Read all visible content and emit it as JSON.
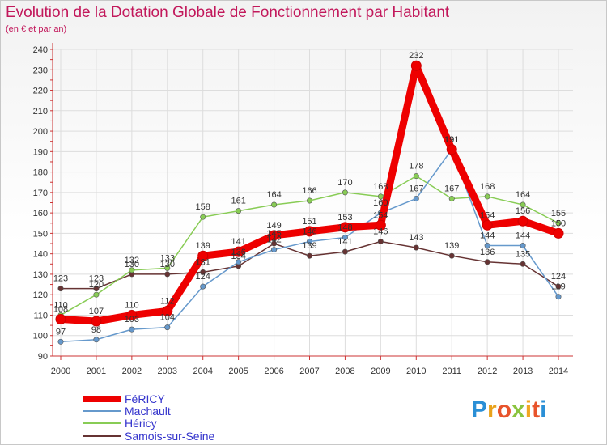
{
  "chart_data": {
    "type": "line",
    "title": "Evolution de la Dotation Globale de Fonctionnement par Habitant",
    "subtitle": "(en € et par an)",
    "categories": [
      "2000",
      "2001",
      "2002",
      "2003",
      "2004",
      "2005",
      "2006",
      "2007",
      "2008",
      "2009",
      "2010",
      "2011",
      "2012",
      "2013",
      "2014"
    ],
    "ylim": [
      90,
      240
    ],
    "yticks": [
      90,
      100,
      110,
      120,
      130,
      140,
      150,
      160,
      170,
      180,
      190,
      200,
      210,
      220,
      230,
      240
    ],
    "legend_position": "bottom-left",
    "series": [
      {
        "name": "FéRICY",
        "color": "#ee0000",
        "values": [
          108,
          107,
          110,
          112,
          139,
          141,
          149,
          151,
          153,
          154,
          232,
          191,
          154,
          156,
          150
        ],
        "labels": [
          "108",
          "107",
          "110",
          "112",
          "139",
          "141",
          "149",
          "151",
          "153",
          "154",
          "232",
          "191",
          "154",
          "156",
          "150"
        ]
      },
      {
        "name": "Machault",
        "color": "#6699cc",
        "values": [
          97,
          98,
          103,
          104,
          124,
          136,
          142,
          146,
          148,
          160,
          167,
          191,
          144,
          144,
          119
        ],
        "labels": [
          "97",
          "98",
          "103",
          "104",
          "124",
          "136",
          "142",
          "146",
          "148",
          "160",
          "167",
          "191",
          "144",
          "144",
          "119"
        ]
      },
      {
        "name": "Héricy",
        "color": "#88cc55",
        "values": [
          110,
          120,
          132,
          133,
          158,
          161,
          164,
          166,
          170,
          168,
          178,
          167,
          168,
          164,
          155
        ],
        "labels": [
          "110",
          "120",
          "132",
          "133",
          "158",
          "161",
          "164",
          "166",
          "170",
          "168",
          "178",
          "167",
          "168",
          "164",
          "155"
        ]
      },
      {
        "name": "Samois-sur-Seine",
        "color": "#663333",
        "values": [
          123,
          123,
          130,
          130,
          131,
          134,
          145,
          139,
          141,
          146,
          143,
          139,
          136,
          135,
          124
        ],
        "labels": [
          "123",
          "123",
          "130",
          "130",
          "131",
          "134",
          "145",
          "139",
          "141",
          "146",
          "143",
          "139",
          "136",
          "135",
          "124"
        ]
      }
    ]
  },
  "logo": {
    "letters": [
      "P",
      "r",
      "o",
      "x",
      "i",
      "t",
      "i"
    ],
    "colors": [
      "#2a8fd6",
      "#e9a21b",
      "#e8542c",
      "#8bc43f",
      "#f2a521",
      "#e8542c",
      "#2a8fd6"
    ]
  }
}
